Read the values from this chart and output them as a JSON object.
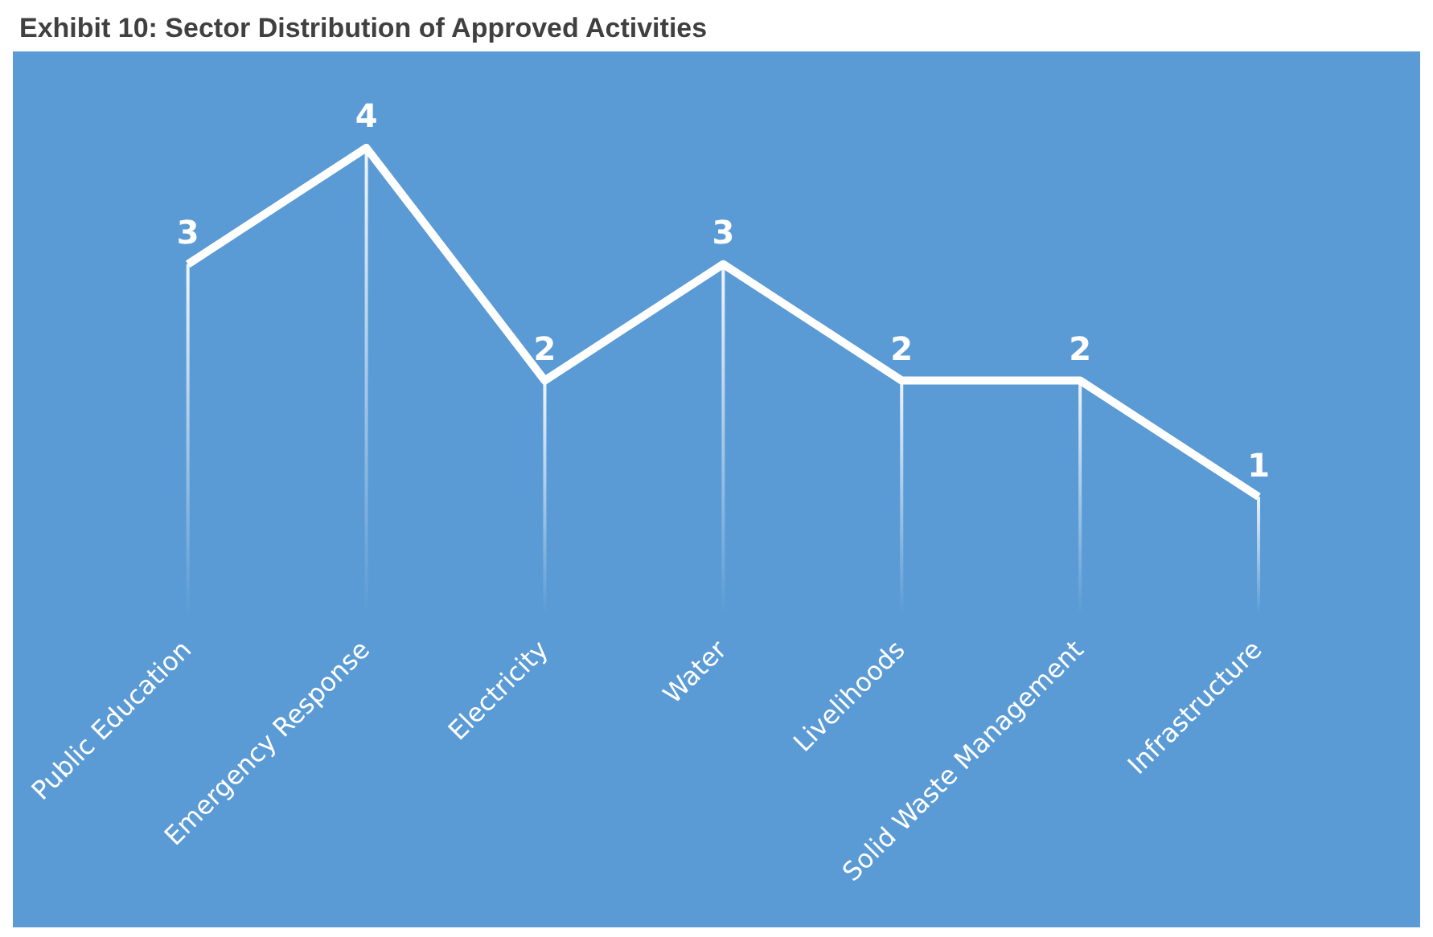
{
  "chart_data": {
    "type": "line",
    "title": "Exhibit 10: Sector Distribution of Approved Activities",
    "categories": [
      "Public Education",
      "Emergency Response",
      "Electricity",
      "Water",
      "Livelihoods",
      "Solid Waste Management",
      "Infrastructure"
    ],
    "series": [
      {
        "color": "#ffffff",
        "values": [
          3,
          4,
          2,
          3,
          2,
          2,
          1
        ]
      }
    ],
    "data_labels": true,
    "legend": false,
    "grid": "x",
    "line_style": "solid"
  }
}
